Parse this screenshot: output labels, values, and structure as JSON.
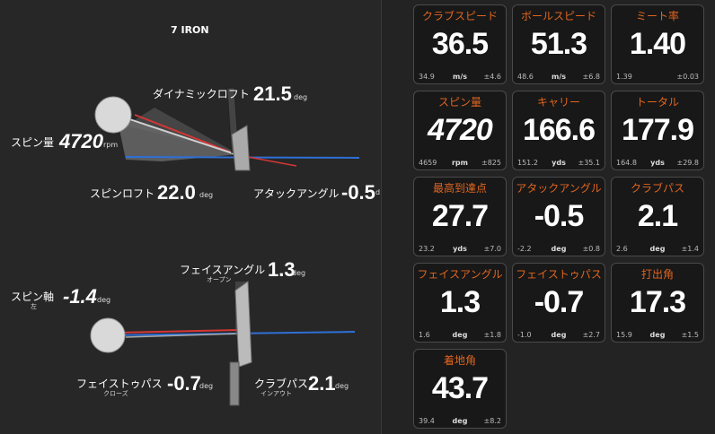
{
  "left": {
    "club": "7 IRON",
    "dynamic_loft": {
      "label": "ダイナミックロフト",
      "value": "21.5",
      "unit": "deg"
    },
    "spin": {
      "label": "スピン量",
      "value": "4720",
      "unit": "rpm"
    },
    "spin_loft": {
      "label": "スピンロフト",
      "value": "22.0",
      "unit": "deg"
    },
    "attack_angle": {
      "label": "アタックアングル",
      "value": "-0.5",
      "unit": "d"
    },
    "face_angle": {
      "label": "フェイスアングル",
      "value": "1.3",
      "unit": "deg",
      "sub": "オープン"
    },
    "spin_axis": {
      "label": "スピン軸",
      "value": "-1.4",
      "unit": "deg",
      "sub": "左"
    },
    "face_to_path": {
      "label": "フェイストゥパス",
      "value": "-0.7",
      "unit": "deg",
      "sub": "クローズ"
    },
    "club_path": {
      "label": "クラブパス",
      "value": "2.1",
      "unit": "deg",
      "sub": "インアウト"
    }
  },
  "tiles": [
    {
      "label": "クラブスピード",
      "value": "36.5",
      "unit": "m/s",
      "avg": "34.9",
      "dev": "±4.6"
    },
    {
      "label": "ボールスピード",
      "value": "51.3",
      "unit": "m/s",
      "avg": "48.6",
      "dev": "±6.8"
    },
    {
      "label": "ミート率",
      "value": "1.40",
      "unit": "",
      "avg": "1.39",
      "dev": "±0.03"
    },
    {
      "label": "スピン量",
      "value": "4720",
      "unit": "rpm",
      "avg": "4659",
      "dev": "±825"
    },
    {
      "label": "キャリー",
      "value": "166.6",
      "unit": "yds",
      "avg": "151.2",
      "dev": "±35.1"
    },
    {
      "label": "トータル",
      "value": "177.9",
      "unit": "yds",
      "avg": "164.8",
      "dev": "±29.8"
    },
    {
      "label": "最高到達点",
      "value": "27.7",
      "unit": "yds",
      "avg": "23.2",
      "dev": "±7.0"
    },
    {
      "label": "アタックアングル",
      "value": "-0.5",
      "unit": "deg",
      "avg": "-2.2",
      "dev": "±0.8"
    },
    {
      "label": "クラブパス",
      "value": "2.1",
      "unit": "deg",
      "avg": "2.6",
      "dev": "±1.4"
    },
    {
      "label": "フェイスアングル",
      "value": "1.3",
      "unit": "deg",
      "avg": "1.6",
      "dev": "±1.8"
    },
    {
      "label": "フェイストゥパス",
      "value": "-0.7",
      "unit": "deg",
      "avg": "-1.0",
      "dev": "±2.7"
    },
    {
      "label": "打出角",
      "value": "17.3",
      "unit": "deg",
      "avg": "15.9",
      "dev": "±1.5"
    },
    {
      "label": "着地角",
      "value": "43.7",
      "unit": "deg",
      "avg": "39.4",
      "dev": "±8.2"
    }
  ],
  "colors": {
    "accent": "#e0651f",
    "tile_bg": "#181818",
    "tile_border": "#4a4a4a",
    "bg": "#262626",
    "blue_line": "#2f6fd6",
    "red_line": "#d53636"
  }
}
